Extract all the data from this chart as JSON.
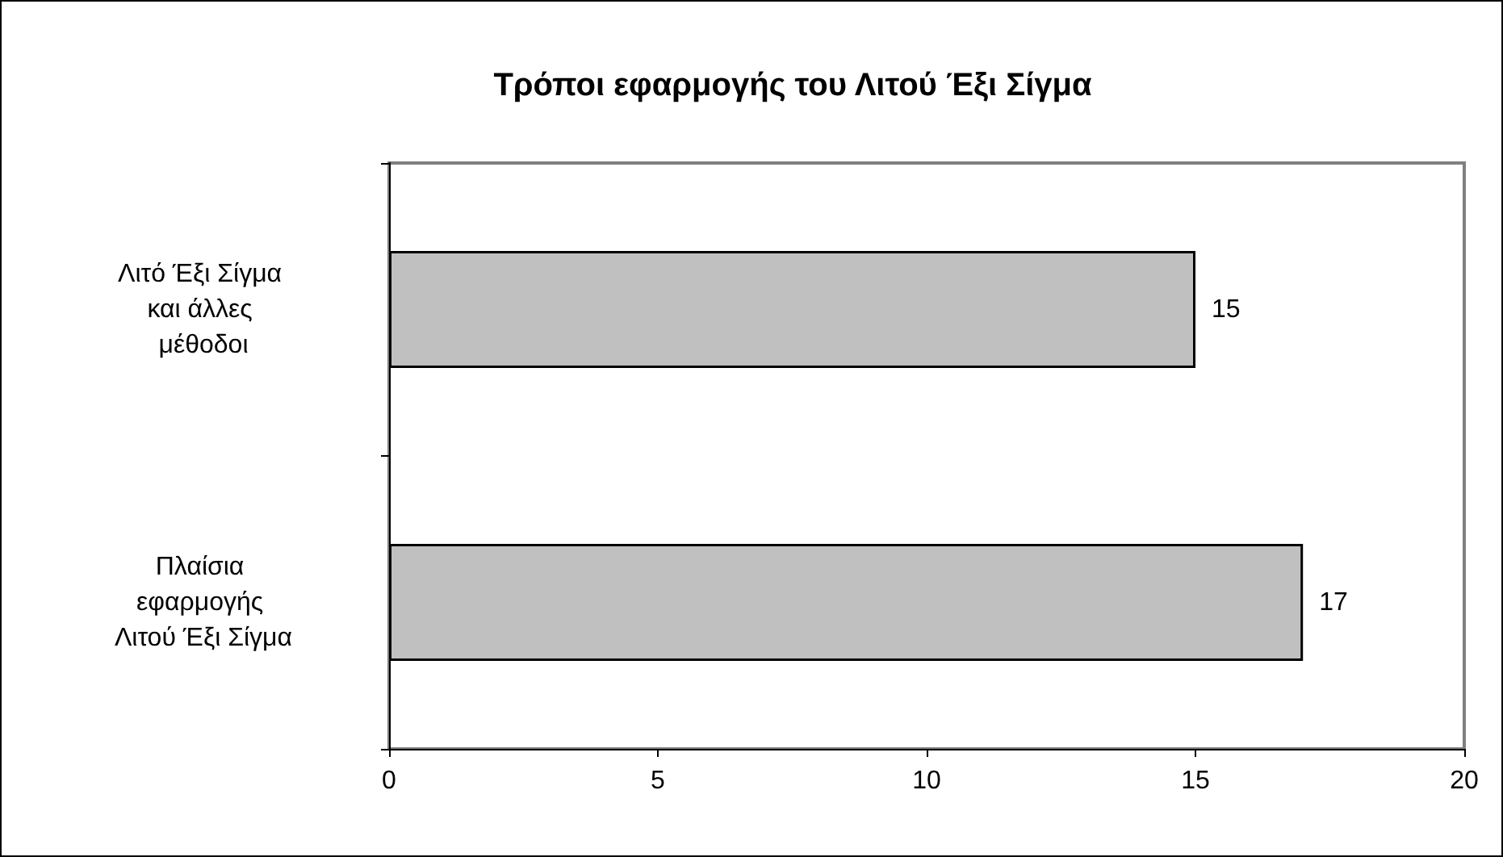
{
  "chart_data": {
    "type": "bar",
    "orientation": "horizontal",
    "title": "Τρόποι εφαρμογής του Λιτού Έξι Σίγμα",
    "categories": [
      "Λιτό Έξι Σίγμα και άλλες μέθοδοι",
      "Πλαίσια εφαρμογής Λιτού Έξι Σίγμα"
    ],
    "values": [
      15,
      17
    ],
    "color": "#c0c0c0",
    "xlim": [
      0,
      20
    ],
    "xticks": [
      0,
      5,
      10,
      15,
      20
    ],
    "grid": false,
    "data_labels": true
  }
}
